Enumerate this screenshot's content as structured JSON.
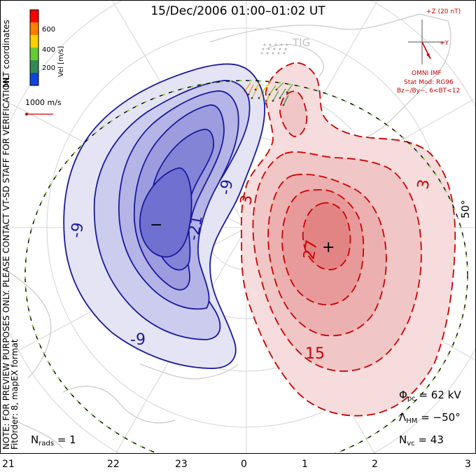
{
  "title": "15/Dec/2006 01:00–01:02 UT",
  "mlt_axis": [
    "21",
    "22",
    "23",
    "0",
    "1",
    "2",
    "3"
  ],
  "lat_label": "50°",
  "station_label": "TIG",
  "colorbar": {
    "title": "MLT coordinates",
    "unit_label": "Vel [m/s]",
    "ticks": [
      "600",
      "400",
      "200"
    ],
    "colors": [
      "#ff0000",
      "#ff7f00",
      "#ffd000",
      "#66cc33",
      "#338855",
      "#1144dd"
    ]
  },
  "scale_vector_label": "1000 m/s",
  "imf": {
    "z_label": "+Z (20 nT)",
    "y_label": "+Y",
    "source_label": "OMNI IMF",
    "model_line1": "Stat Mod: RG96",
    "model_line2": "Bz−/By−, 6<BT<12"
  },
  "side_note_1": "NOTE: FOR PREVIEW PURPOSES ONLY. PLEASE CONTACT VT-SD STAFF FOR VERIFICATION.",
  "side_note_2": "FitOrder: 8, mapEX format",
  "contour_labels": {
    "neg_outer": "-9",
    "neg_mid": "-21",
    "neg_edge": "-9",
    "neg_lower": "-9",
    "pos_upper": "3",
    "pos_right": "3",
    "pos_core": "27",
    "pos_lower": "15",
    "min_marker": "−",
    "max_marker": "+"
  },
  "stats": {
    "phi_symbol": "Φ",
    "phi_sub": "pc",
    "phi_value": "= 62 kV",
    "lambda_symbol": "Λ",
    "lambda_sub": "HM",
    "lambda_value": "= −50°",
    "nvc_symbol": "N",
    "nvc_sub": "vc",
    "nvc_value": "= 43",
    "nrads_symbol": "N",
    "nrads_sub": "rads",
    "nrads_value": "= 1"
  },
  "colors": {
    "negative_contour": "#1a1aa0",
    "positive_contour": "#cc0000",
    "hmb": "#000000"
  }
}
